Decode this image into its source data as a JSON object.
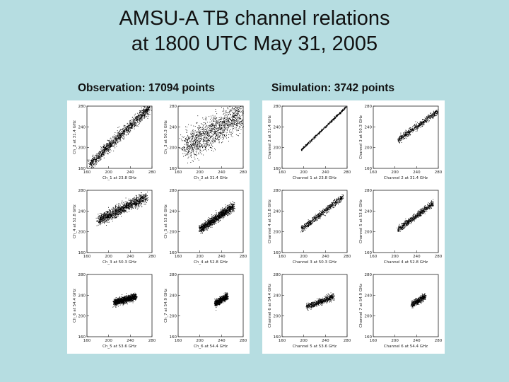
{
  "slide": {
    "title_line1": "AMSU-A TB channel relations",
    "title_line2": "at 1800 UTC May 31, 2005"
  },
  "panels": {
    "observation_label": "Observation: 17094 points",
    "simulation_label": "Simulation: 3742 points"
  },
  "colors": {
    "background": "#b6dde1",
    "panel": "#ffffff",
    "points": "#000000"
  },
  "chart_data": [
    {
      "panel": "observation",
      "type": "scatter",
      "row": 0,
      "col": 0,
      "xlabel": "Ch_1 at 23.8 GHz",
      "ylabel": "Ch_2 at 31.4 GHz",
      "xlim": [
        160,
        280
      ],
      "ylim": [
        160,
        280
      ],
      "xticks": [
        "160",
        "200",
        "240",
        "280"
      ],
      "yticks": [
        "160",
        "200",
        "240",
        "280"
      ],
      "points_count_approx": 2500,
      "trend": [
        [
          165,
          168
        ],
        [
          275,
          278
        ]
      ],
      "spread": 5
    },
    {
      "panel": "observation",
      "type": "scatter",
      "row": 0,
      "col": 1,
      "xlabel": "Ch_2 at 31.4 GHz",
      "ylabel": "Ch_3 at 50.3 GHz",
      "xlim": [
        160,
        280
      ],
      "ylim": [
        160,
        280
      ],
      "xticks": [
        "160",
        "200",
        "240",
        "280"
      ],
      "yticks": [
        "160",
        "200",
        "240",
        "280"
      ],
      "points_count_approx": 3000,
      "trend": [
        [
          172,
          200
        ],
        [
          278,
          266
        ]
      ],
      "spread": 14
    },
    {
      "panel": "observation",
      "type": "scatter",
      "row": 1,
      "col": 0,
      "xlabel": "Ch_3 at 50.3 GHz",
      "ylabel": "Ch_4 at 52.8 GHz",
      "xlim": [
        160,
        280
      ],
      "ylim": [
        160,
        280
      ],
      "xticks": [
        "160",
        "200",
        "240",
        "280"
      ],
      "yticks": [
        "160",
        "200",
        "240",
        "280"
      ],
      "points_count_approx": 2500,
      "trend": [
        [
          180,
          222
        ],
        [
          270,
          268
        ]
      ],
      "spread": 5
    },
    {
      "panel": "observation",
      "type": "scatter",
      "row": 1,
      "col": 1,
      "xlabel": "Ch_4 at 52.8 GHz",
      "ylabel": "Ch_5 at 53.6 GHz",
      "xlim": [
        160,
        280
      ],
      "ylim": [
        160,
        280
      ],
      "xticks": [
        "160",
        "200",
        "240",
        "280"
      ],
      "yticks": [
        "160",
        "200",
        "240",
        "280"
      ],
      "points_count_approx": 1800,
      "trend": [
        [
          200,
          205
        ],
        [
          262,
          250
        ]
      ],
      "spread": 4
    },
    {
      "panel": "observation",
      "type": "scatter",
      "row": 2,
      "col": 0,
      "xlabel": "Ch_5 at 53.6 GHz",
      "ylabel": "Ch_6 at 54.4 GHz",
      "xlim": [
        160,
        280
      ],
      "ylim": [
        160,
        280
      ],
      "xticks": [
        "160",
        "200",
        "240",
        "280"
      ],
      "yticks": [
        "160",
        "200",
        "240",
        "280"
      ],
      "points_count_approx": 1500,
      "trend": [
        [
          210,
          226
        ],
        [
          250,
          238
        ]
      ],
      "spread": 3
    },
    {
      "panel": "observation",
      "type": "scatter",
      "row": 2,
      "col": 1,
      "xlabel": "Ch_6 at 54.4 GHz",
      "ylabel": "Ch_7 at 54.9 GHz",
      "xlim": [
        160,
        280
      ],
      "ylim": [
        160,
        280
      ],
      "xticks": [
        "160",
        "200",
        "240",
        "280"
      ],
      "yticks": [
        "160",
        "200",
        "240",
        "280"
      ],
      "points_count_approx": 900,
      "trend": [
        [
          228,
          225
        ],
        [
          250,
          238
        ]
      ],
      "spread": 3
    },
    {
      "panel": "simulation",
      "type": "scatter",
      "row": 0,
      "col": 0,
      "xlabel": "Channel 1 at 23.8 GHz",
      "ylabel": "Channel 2 at 31.4 GHz",
      "xlim": [
        160,
        280
      ],
      "ylim": [
        160,
        280
      ],
      "xticks": [
        "160",
        "200",
        "240",
        "280"
      ],
      "yticks": [
        "160",
        "200",
        "240",
        "280"
      ],
      "points_count_approx": 500,
      "trend": [
        [
          195,
          196
        ],
        [
          278,
          279
        ]
      ],
      "spread": 1
    },
    {
      "panel": "simulation",
      "type": "scatter",
      "row": 0,
      "col": 1,
      "xlabel": "Channel 2 at 31.4 GHz",
      "ylabel": "Channel 3 at 50.3 GHz",
      "xlim": [
        160,
        280
      ],
      "ylim": [
        160,
        280
      ],
      "xticks": [
        "160",
        "200",
        "240",
        "280"
      ],
      "yticks": [
        "160",
        "200",
        "240",
        "280"
      ],
      "points_count_approx": 600,
      "trend": [
        [
          205,
          215
        ],
        [
          278,
          270
        ]
      ],
      "spread": 3
    },
    {
      "panel": "simulation",
      "type": "scatter",
      "row": 1,
      "col": 0,
      "xlabel": "Channel 3 at 50.3 GHz",
      "ylabel": "Channel 4 at 52.8 GHz",
      "xlim": [
        160,
        280
      ],
      "ylim": [
        160,
        280
      ],
      "xticks": [
        "160",
        "200",
        "240",
        "280"
      ],
      "yticks": [
        "160",
        "200",
        "240",
        "280"
      ],
      "points_count_approx": 700,
      "trend": [
        [
          195,
          205
        ],
        [
          272,
          268
        ]
      ],
      "spread": 3
    },
    {
      "panel": "simulation",
      "type": "scatter",
      "row": 1,
      "col": 1,
      "xlabel": "Channel 4 at 52.8 GHz",
      "ylabel": "Channel 5 at 53.6 GHz",
      "xlim": [
        160,
        280
      ],
      "ylim": [
        160,
        280
      ],
      "xticks": [
        "160",
        "200",
        "240",
        "280"
      ],
      "yticks": [
        "160",
        "200",
        "240",
        "280"
      ],
      "points_count_approx": 700,
      "trend": [
        [
          205,
          205
        ],
        [
          270,
          255
        ]
      ],
      "spread": 3
    },
    {
      "panel": "simulation",
      "type": "scatter",
      "row": 2,
      "col": 0,
      "xlabel": "Channel 5 at 53.6 GHz",
      "ylabel": "Channel 6 at 54.4 GHz",
      "xlim": [
        160,
        280
      ],
      "ylim": [
        160,
        280
      ],
      "xticks": [
        "160",
        "200",
        "240",
        "280"
      ],
      "yticks": [
        "160",
        "200",
        "240",
        "280"
      ],
      "points_count_approx": 600,
      "trend": [
        [
          205,
          218
        ],
        [
          255,
          238
        ]
      ],
      "spread": 3
    },
    {
      "panel": "simulation",
      "type": "scatter",
      "row": 2,
      "col": 1,
      "xlabel": "Channel 6 at 54.4 GHz",
      "ylabel": "Channel 7 at 54.9 GHz",
      "xlim": [
        160,
        280
      ],
      "ylim": [
        160,
        280
      ],
      "xticks": [
        "160",
        "200",
        "240",
        "280"
      ],
      "yticks": [
        "160",
        "200",
        "240",
        "280"
      ],
      "points_count_approx": 500,
      "trend": [
        [
          230,
          222
        ],
        [
          255,
          238
        ]
      ],
      "spread": 3
    }
  ]
}
